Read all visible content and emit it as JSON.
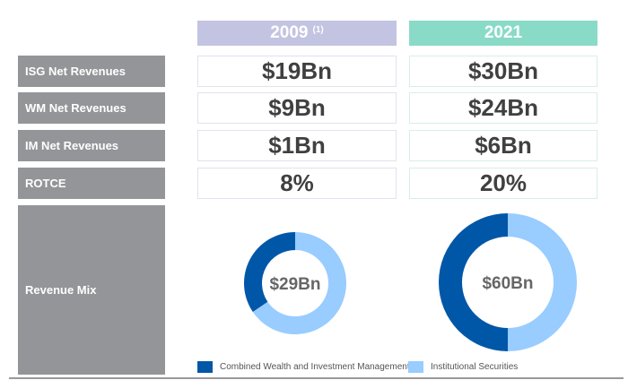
{
  "headers": {
    "y2009": "2009",
    "y2009_note": "(1)",
    "y2021": "2021"
  },
  "colors": {
    "header_2009": "#c3c3e2",
    "header_2021": "#89dbc8",
    "wim": "#0057a8",
    "isg": "#99ccff",
    "label_bg": "#939598"
  },
  "rows": [
    {
      "label": "ISG Net Revenues",
      "v2009": "$19Bn",
      "v2021": "$30Bn"
    },
    {
      "label": "WM Net Revenues",
      "v2009": "$9Bn",
      "v2021": "$24Bn"
    },
    {
      "label": "IM Net Revenues",
      "v2009": "$1Bn",
      "v2021": "$6Bn"
    },
    {
      "label": "ROTCE",
      "v2009": "8%",
      "v2021": "20%"
    }
  ],
  "revenue_mix_label": "Revenue Mix",
  "chart_data": [
    {
      "type": "pie",
      "title": "2009",
      "center_label": "$29Bn",
      "slices": [
        {
          "name": "Combined Wealth and Investment Management",
          "value": 10
        },
        {
          "name": "Institutional Securities",
          "value": 19
        }
      ]
    },
    {
      "type": "pie",
      "title": "2021",
      "center_label": "$60Bn",
      "slices": [
        {
          "name": "Combined Wealth and Investment Management",
          "value": 30
        },
        {
          "name": "Institutional Securities",
          "value": 30
        }
      ]
    }
  ],
  "legend": [
    {
      "label": "Combined Wealth and Investment Management"
    },
    {
      "label": "Institutional Securities"
    }
  ]
}
